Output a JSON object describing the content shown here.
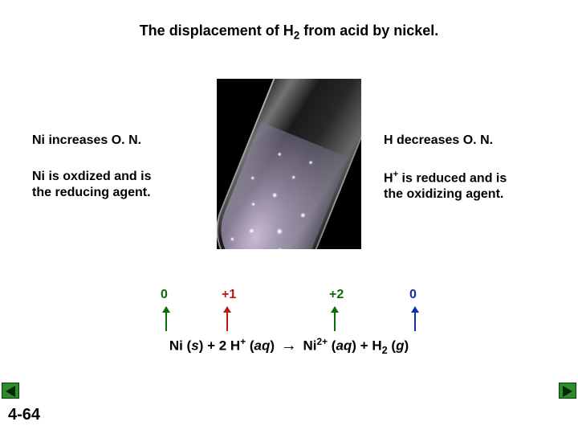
{
  "title_pre": "The displacement of H",
  "title_sub": "2",
  "title_post": " from acid by nickel.",
  "left": {
    "line1": "Ni increases O. N.",
    "line2a": "Ni is oxdized and is",
    "line2b": "the reducing agent."
  },
  "right": {
    "line1": "H decreases O. N.",
    "line2a_pre": "H",
    "line2a_sup": "+",
    "line2a_post": " is reduced and is",
    "line2b": "the oxidizing agent."
  },
  "ox": {
    "v1": "0",
    "v2": "+1",
    "v3": "+2",
    "v4": "0",
    "colors": {
      "v1": "#0b6b0b",
      "v2": "#c01515",
      "v3": "#0b6b0b",
      "v4": "#1030b0"
    },
    "x": {
      "v1": 200,
      "v2": 276,
      "v3": 410,
      "v4": 510
    }
  },
  "equation": {
    "r1": "Ni (",
    "r1s": "s",
    "r1e": ") + 2 H",
    "hsup": "+",
    "aq1a": " (",
    "aq1": "aq",
    "aq1e": ") ",
    "arrow": "→",
    "p1": "  Ni",
    "nisup": "2+",
    "aq2a": " (",
    "aq2": "aq",
    "aq2e": ") + H",
    "h2sub": "2",
    "g1a": " (",
    "g1": "g",
    "g1e": ")"
  },
  "slide": "4-64",
  "style": {
    "bg": "#ffffff",
    "tube_bg": "#000000",
    "title_fontsize": 18,
    "body_fontsize": 16,
    "eq_fontsize": 17
  }
}
